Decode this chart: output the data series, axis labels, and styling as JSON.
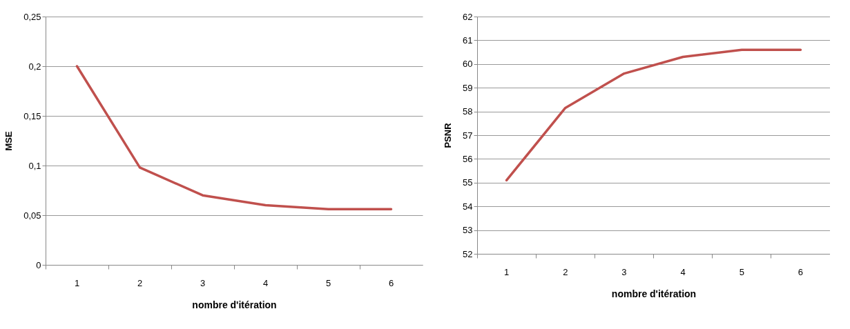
{
  "chart_data": [
    {
      "type": "line",
      "xlabel": "nombre d'itération",
      "ylabel": "MSE",
      "categories": [
        "1",
        "2",
        "3",
        "4",
        "5",
        "6"
      ],
      "series": [
        {
          "color": "#c0504d",
          "values": [
            0.2,
            0.098,
            0.07,
            0.06,
            0.056,
            0.056
          ]
        }
      ],
      "ylim": [
        0,
        0.25
      ],
      "yticks": [
        0,
        {
          "value": 0.05,
          "label": "0,05"
        },
        {
          "value": 0.1,
          "label": "0,1"
        },
        {
          "value": 0.15,
          "label": "0,15"
        },
        {
          "value": 0.2,
          "label": "0,2"
        },
        {
          "value": 0.25,
          "label": "0,25"
        }
      ],
      "grid": "y",
      "line_style": "solid",
      "marker": "none"
    },
    {
      "type": "line",
      "xlabel": "nombre d'itération",
      "ylabel": "PSNR",
      "categories": [
        "1",
        "2",
        "3",
        "4",
        "5",
        "6"
      ],
      "series": [
        {
          "color": "#c0504d",
          "values": [
            55.1,
            58.15,
            59.6,
            60.3,
            60.6,
            60.6
          ]
        }
      ],
      "ylim": [
        52,
        62
      ],
      "yticks": [
        52,
        53,
        54,
        55,
        56,
        57,
        58,
        59,
        60,
        61,
        62
      ],
      "grid": "y",
      "line_style": "solid",
      "marker": "none"
    }
  ]
}
